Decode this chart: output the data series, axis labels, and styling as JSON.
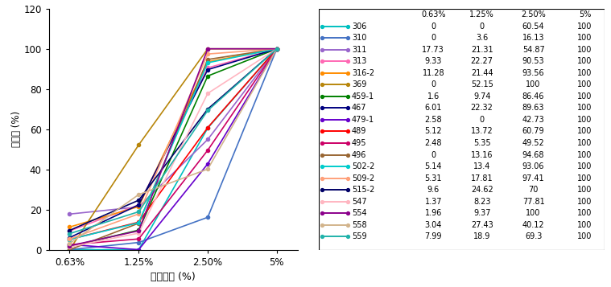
{
  "x_labels": [
    "0.63%",
    "1.25%",
    "2.50%",
    "5%"
  ],
  "series": [
    {
      "label": "306",
      "values": [
        0,
        0,
        60.54,
        100
      ],
      "color": "#00C0C0"
    },
    {
      "label": "310",
      "values": [
        0,
        3.6,
        16.13,
        100
      ],
      "color": "#4472C4"
    },
    {
      "label": "311",
      "values": [
        17.73,
        21.31,
        54.87,
        100
      ],
      "color": "#9966CC"
    },
    {
      "label": "313",
      "values": [
        9.33,
        22.27,
        90.53,
        100
      ],
      "color": "#FF69B4"
    },
    {
      "label": "316-2",
      "values": [
        11.28,
        21.44,
        93.56,
        100
      ],
      "color": "#FF8C00"
    },
    {
      "label": "369",
      "values": [
        0,
        52.15,
        100,
        100
      ],
      "color": "#B8860B"
    },
    {
      "label": "459-1",
      "values": [
        1.6,
        9.74,
        86.46,
        100
      ],
      "color": "#008000"
    },
    {
      "label": "467",
      "values": [
        6.01,
        22.32,
        89.63,
        100
      ],
      "color": "#000080"
    },
    {
      "label": "479-1",
      "values": [
        2.58,
        0,
        42.73,
        100
      ],
      "color": "#6600CC"
    },
    {
      "label": "489",
      "values": [
        5.12,
        13.72,
        60.79,
        100
      ],
      "color": "#FF0000"
    },
    {
      "label": "495",
      "values": [
        2.48,
        5.35,
        49.52,
        100
      ],
      "color": "#CC0066"
    },
    {
      "label": "496",
      "values": [
        0,
        13.16,
        94.68,
        100
      ],
      "color": "#996633"
    },
    {
      "label": "502-2",
      "values": [
        5.14,
        13.4,
        93.06,
        100
      ],
      "color": "#00CCCC"
    },
    {
      "label": "509-2",
      "values": [
        5.31,
        17.81,
        97.41,
        100
      ],
      "color": "#FFA07A"
    },
    {
      "label": "515-2",
      "values": [
        9.6,
        24.62,
        70,
        100
      ],
      "color": "#000066"
    },
    {
      "label": "547",
      "values": [
        1.37,
        8.23,
        77.81,
        100
      ],
      "color": "#FFB6C1"
    },
    {
      "label": "554",
      "values": [
        1.96,
        9.37,
        100,
        100
      ],
      "color": "#8B008B"
    },
    {
      "label": "558",
      "values": [
        3.04,
        27.43,
        40.12,
        100
      ],
      "color": "#D2B48C"
    },
    {
      "label": "559",
      "values": [
        7.99,
        18.9,
        69.3,
        100
      ],
      "color": "#20B2AA"
    }
  ],
  "ylabel": "살선률 (%)",
  "xlabel": "배양여액 (%)",
  "ylim": [
    0,
    120
  ],
  "yticks": [
    0,
    20,
    40,
    60,
    80,
    100,
    120
  ],
  "col_headers": [
    "0.63%",
    "1.25%",
    "2.50%",
    "5%"
  ]
}
